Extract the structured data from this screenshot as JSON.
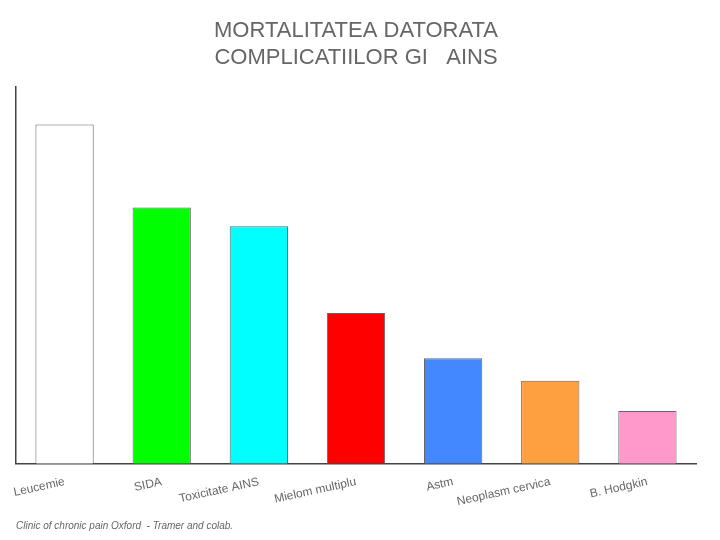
{
  "chart_data": {
    "type": "bar",
    "title": [
      "MORTALITATEA DATORATA",
      "COMPLICATIILOR GI   AINS"
    ],
    "footnote": "Clinic of chronic pain Oxford  - Tramer and colab.",
    "categories": [
      "Leucemie",
      "SIDA",
      "Toxicitate AINS",
      "Mielom multiplu",
      "Astm",
      "Neoplasm cervica",
      "B. Hodgkin"
    ],
    "values": [
      9.0,
      6.8,
      6.3,
      4.0,
      2.8,
      2.2,
      1.4
    ],
    "colors": [
      "#FFFFFF",
      "#00FF00",
      "#00FFFF",
      "#FF0000",
      "#4488FF",
      "#FFA040",
      "#FF99CC"
    ],
    "ylim": [
      0,
      10
    ],
    "grid": false,
    "tick_labels": "x"
  }
}
